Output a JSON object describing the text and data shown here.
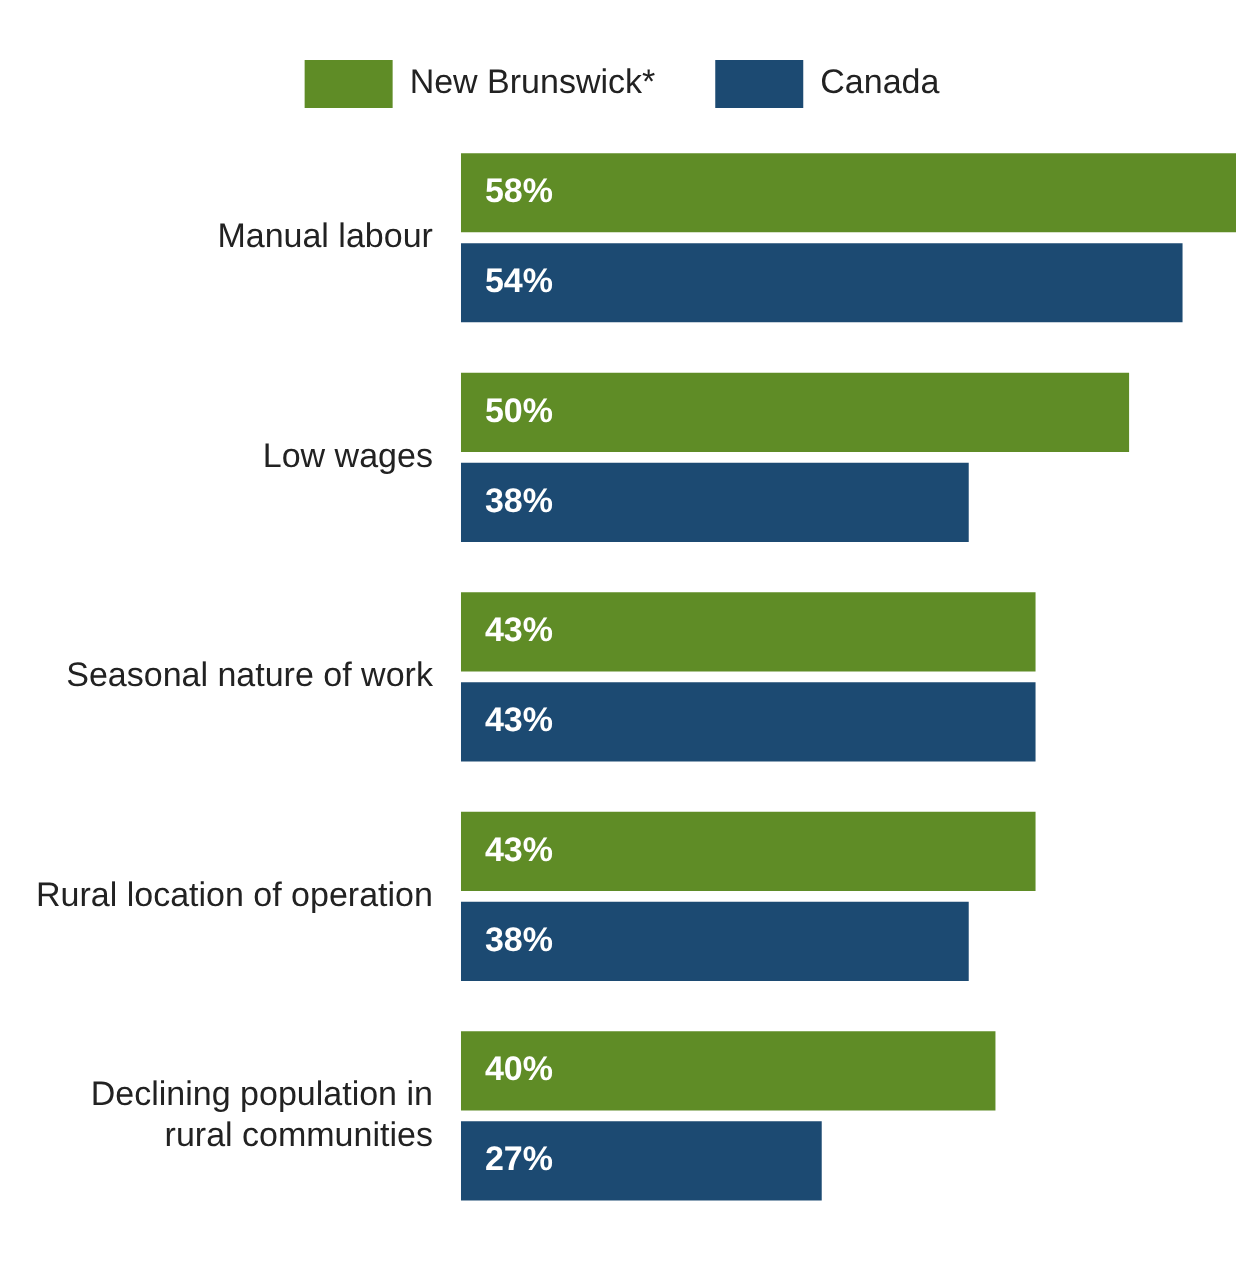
{
  "chart_data": {
    "type": "bar",
    "orientation": "horizontal",
    "categories": [
      "Manual labour",
      "Low wages",
      "Seasonal nature of work",
      "Rural location of operation",
      "Declining population in rural communities"
    ],
    "series": [
      {
        "name": "New Brunswick*",
        "color": "#5f8c26",
        "values": [
          58,
          50,
          43,
          43,
          40
        ],
        "value_labels": [
          "58%",
          "50%",
          "43%",
          "43%",
          "40%"
        ]
      },
      {
        "name": "Canada",
        "color": "#1c4a72",
        "values": [
          54,
          38,
          43,
          38,
          27
        ],
        "value_labels": [
          "54%",
          "38%",
          "43%",
          "38%",
          "27%"
        ]
      }
    ],
    "legend": "top",
    "grid": false,
    "tick_labels": "y"
  }
}
